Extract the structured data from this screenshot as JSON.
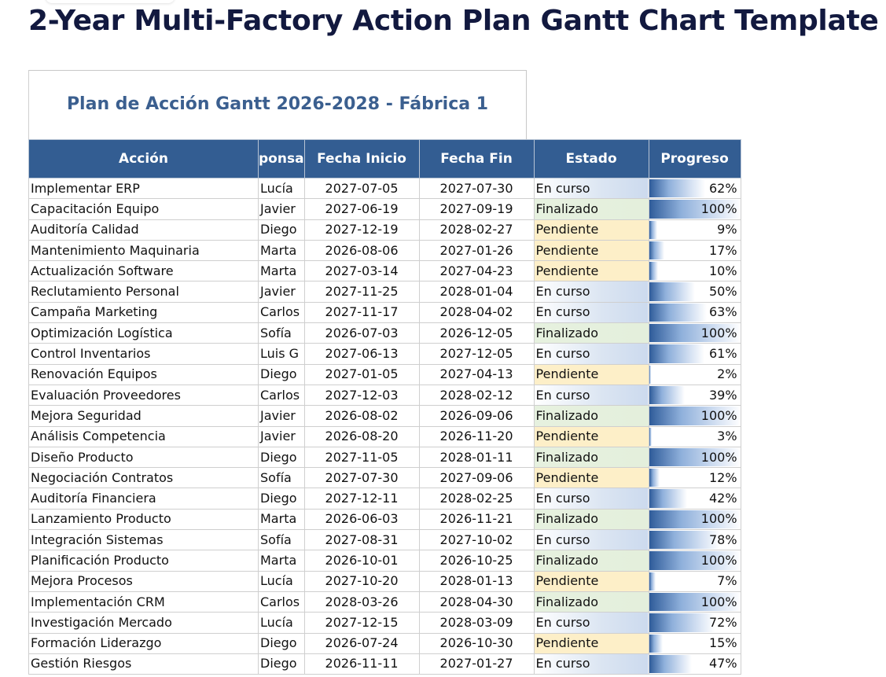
{
  "page": {
    "title": "2-Year Multi-Factory Action Plan Gantt Chart Template"
  },
  "sheet": {
    "title": "Plan de Acción Gantt 2026-2028 - Fábrica 1",
    "columns": [
      "Acción",
      "Responsable",
      "Fecha Inicio",
      "Fecha Fin",
      "Estado",
      "Progreso"
    ],
    "visible_columns": [
      "Acción",
      "ponsa",
      "Fecha Inicio",
      "Fecha Fin",
      "Estado",
      "Progreso"
    ],
    "rows": [
      {
        "accion": "Implementar ERP",
        "resp": "Lucía",
        "inicio": "2027-07-05",
        "fin": "2027-07-30",
        "estado": "En curso",
        "progreso": 62,
        "progreso_label": "62%"
      },
      {
        "accion": "Capacitación Equipo",
        "resp": "Javier",
        "inicio": "2027-06-19",
        "fin": "2027-09-19",
        "estado": "Finalizado",
        "progreso": 100,
        "progreso_label": "100%"
      },
      {
        "accion": "Auditoría Calidad",
        "resp": "Diego",
        "inicio": "2027-12-19",
        "fin": "2028-02-27",
        "estado": "Pendiente",
        "progreso": 9,
        "progreso_label": "9%"
      },
      {
        "accion": "Mantenimiento Maquinaria",
        "resp": "Marta",
        "inicio": "2026-08-06",
        "fin": "2027-01-26",
        "estado": "Pendiente",
        "progreso": 17,
        "progreso_label": "17%"
      },
      {
        "accion": "Actualización Software",
        "resp": "Marta",
        "inicio": "2027-03-14",
        "fin": "2027-04-23",
        "estado": "Pendiente",
        "progreso": 10,
        "progreso_label": "10%"
      },
      {
        "accion": "Reclutamiento Personal",
        "resp": "Javier",
        "inicio": "2027-11-25",
        "fin": "2028-01-04",
        "estado": "En curso",
        "progreso": 50,
        "progreso_label": "50%"
      },
      {
        "accion": "Campaña Marketing",
        "resp": "Carlos",
        "inicio": "2027-11-17",
        "fin": "2028-04-02",
        "estado": "En curso",
        "progreso": 63,
        "progreso_label": "63%"
      },
      {
        "accion": "Optimización Logística",
        "resp": "Sofía",
        "inicio": "2026-07-03",
        "fin": "2026-12-05",
        "estado": "Finalizado",
        "progreso": 100,
        "progreso_label": "100%"
      },
      {
        "accion": "Control Inventarios",
        "resp": "Luis G",
        "inicio": "2027-06-13",
        "fin": "2027-12-05",
        "estado": "En curso",
        "progreso": 61,
        "progreso_label": "61%"
      },
      {
        "accion": "Renovación Equipos",
        "resp": "Diego",
        "inicio": "2027-01-05",
        "fin": "2027-04-13",
        "estado": "Pendiente",
        "progreso": 2,
        "progreso_label": "2%"
      },
      {
        "accion": "Evaluación Proveedores",
        "resp": "Carlos",
        "inicio": "2027-12-03",
        "fin": "2028-02-12",
        "estado": "En curso",
        "progreso": 39,
        "progreso_label": "39%"
      },
      {
        "accion": "Mejora Seguridad",
        "resp": "Javier",
        "inicio": "2026-08-02",
        "fin": "2026-09-06",
        "estado": "Finalizado",
        "progreso": 100,
        "progreso_label": "100%"
      },
      {
        "accion": "Análisis Competencia",
        "resp": "Javier",
        "inicio": "2026-08-20",
        "fin": "2026-11-20",
        "estado": "Pendiente",
        "progreso": 3,
        "progreso_label": "3%"
      },
      {
        "accion": "Diseño Producto",
        "resp": "Diego",
        "inicio": "2027-11-05",
        "fin": "2028-01-11",
        "estado": "Finalizado",
        "progreso": 100,
        "progreso_label": "100%"
      },
      {
        "accion": "Negociación Contratos",
        "resp": "Sofía",
        "inicio": "2027-07-30",
        "fin": "2027-09-06",
        "estado": "Pendiente",
        "progreso": 12,
        "progreso_label": "12%"
      },
      {
        "accion": " Auditoría Financiera",
        "resp": "Diego",
        "inicio": "2027-12-11",
        "fin": "2028-02-25",
        "estado": "En curso",
        "progreso": 42,
        "progreso_label": "42%"
      },
      {
        "accion": "Lanzamiento Producto",
        "resp": "Marta",
        "inicio": "2026-06-03",
        "fin": "2026-11-21",
        "estado": "Finalizado",
        "progreso": 100,
        "progreso_label": "100%"
      },
      {
        "accion": "Integración Sistemas",
        "resp": "Sofía",
        "inicio": "2027-08-31",
        "fin": "2027-10-02",
        "estado": "En curso",
        "progreso": 78,
        "progreso_label": "78%"
      },
      {
        "accion": "Planificación Producto",
        "resp": "Marta",
        "inicio": "2026-10-01",
        "fin": "2026-10-25",
        "estado": "Finalizado",
        "progreso": 100,
        "progreso_label": "100%"
      },
      {
        "accion": "Mejora Procesos",
        "resp": "Lucía",
        "inicio": "2027-10-20",
        "fin": "2028-01-13",
        "estado": "Pendiente",
        "progreso": 7,
        "progreso_label": "7%"
      },
      {
        "accion": "Implementación CRM",
        "resp": "Carlos",
        "inicio": "2028-03-26",
        "fin": "2028-04-30",
        "estado": "Finalizado",
        "progreso": 100,
        "progreso_label": "100%"
      },
      {
        "accion": "Investigación Mercado",
        "resp": "Lucía",
        "inicio": "2027-12-15",
        "fin": "2028-03-09",
        "estado": "En curso",
        "progreso": 72,
        "progreso_label": "72%"
      },
      {
        "accion": "Formación Liderazgo",
        "resp": "Diego",
        "inicio": "2026-07-24",
        "fin": "2026-10-30",
        "estado": "Pendiente",
        "progreso": 15,
        "progreso_label": "15%"
      },
      {
        "accion": "Gestión Riesgos",
        "resp": "Diego",
        "inicio": "2026-11-11",
        "fin": "2027-01-27",
        "estado": "En curso",
        "progreso": 47,
        "progreso_label": "47%"
      }
    ]
  },
  "colors": {
    "header_bg": "#335d92",
    "title_text": "#3b5f8f",
    "page_title_text": "#12193f",
    "estado_en_curso": "#ccdaee",
    "estado_finalizado": "#e4efdc",
    "estado_pendiente": "#fdefc8",
    "progress_bar": "#2f5c9a"
  }
}
